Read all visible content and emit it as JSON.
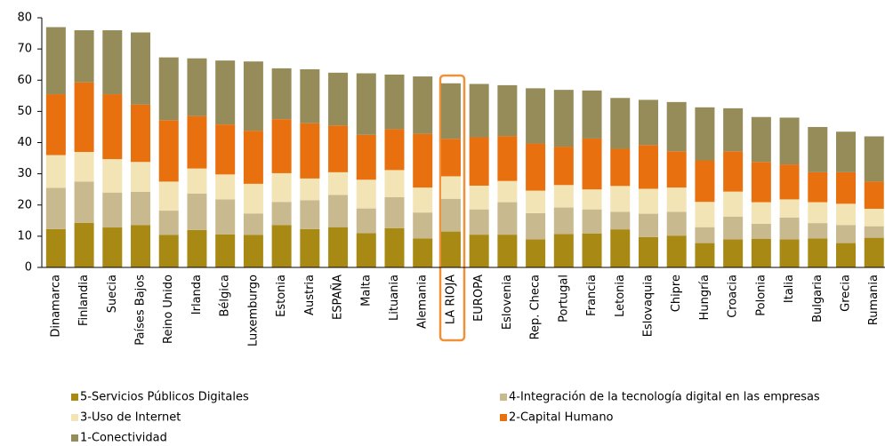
{
  "chart_data": {
    "type": "stacked_bar",
    "categories": [
      "Dinamarca",
      "Finlandia",
      "Suecia",
      "Países Bajos",
      "Reino Unido",
      "Irlanda",
      "Bélgica",
      "Luxemburgo",
      "Estonia",
      "Austria",
      "ESPAÑA",
      "Malta",
      "Lituania",
      "Alemania",
      "LA RIOJA",
      "EUROPA",
      "Eslovenia",
      "Rep. Checa",
      "Portugal",
      "Francia",
      "Letonia",
      "Eslovaquia",
      "Chipre",
      "Hungría",
      "Croacia",
      "Polonia",
      "Italia",
      "Bulgaria",
      "Grecia",
      "Rumania"
    ],
    "series": [
      {
        "name": "5-Servicios Públicos Digitales",
        "color": "#a88913",
        "values": [
          12.3,
          14.3,
          12.8,
          13.6,
          10.4,
          12,
          10.6,
          10.4,
          13.6,
          12.3,
          12.9,
          11,
          12.6,
          9.3,
          11.5,
          10.5,
          10.5,
          9,
          10.7,
          10.9,
          12.2,
          9.7,
          10.2,
          7.8,
          9,
          9.2,
          9,
          9.3,
          7.8,
          9.5
        ]
      },
      {
        "name": "4-Integración de la tecnología digital en las empresas",
        "color": "#c8b98f",
        "values": [
          13.2,
          13.2,
          11.2,
          10.6,
          7.8,
          11.7,
          11.2,
          6.9,
          7.4,
          9.2,
          10.3,
          7.9,
          9.9,
          8.3,
          10.5,
          8.1,
          10.4,
          8.4,
          8.5,
          7.7,
          5.6,
          7.5,
          7.6,
          5.1,
          7.3,
          4.8,
          7,
          4.9,
          5.8,
          3.7
        ]
      },
      {
        "name": "3-Uso de Internet",
        "color": "#f3e4b5",
        "values": [
          10.5,
          9.5,
          10.7,
          9.6,
          9.3,
          8,
          8,
          9.5,
          9.2,
          7,
          7.3,
          9.2,
          8.7,
          8,
          7.2,
          7.6,
          6.8,
          7.2,
          7.2,
          6.4,
          8.3,
          8,
          7.8,
          8.1,
          8,
          6.9,
          5.8,
          6.7,
          6.8,
          5.6
        ]
      },
      {
        "name": "2-Capital Humano",
        "color": "#e8700e",
        "values": [
          19.5,
          22.3,
          20.8,
          18.4,
          19.7,
          16.8,
          16,
          17,
          17.3,
          17.7,
          15,
          14.4,
          13.1,
          17.2,
          12,
          15.5,
          14.4,
          15.1,
          12.3,
          16.3,
          11.9,
          14,
          11.6,
          13.3,
          12.9,
          12.9,
          11.2,
          9.6,
          10.1,
          8.7
        ]
      },
      {
        "name": "1-Conectividad",
        "color": "#958c5a",
        "values": [
          21.5,
          16.7,
          20.5,
          23.1,
          20.1,
          18.5,
          20.5,
          22.2,
          16.3,
          17.3,
          16.9,
          19.7,
          17.5,
          18.4,
          17.8,
          17.1,
          16.3,
          17.7,
          18.2,
          15.4,
          16.3,
          14.5,
          15.8,
          17,
          13.8,
          14.4,
          15,
          14.5,
          13,
          14.5
        ]
      }
    ],
    "ylim": [
      0,
      80
    ],
    "yticks": [
      0,
      10,
      20,
      30,
      40,
      50,
      60,
      70,
      80
    ]
  }
}
